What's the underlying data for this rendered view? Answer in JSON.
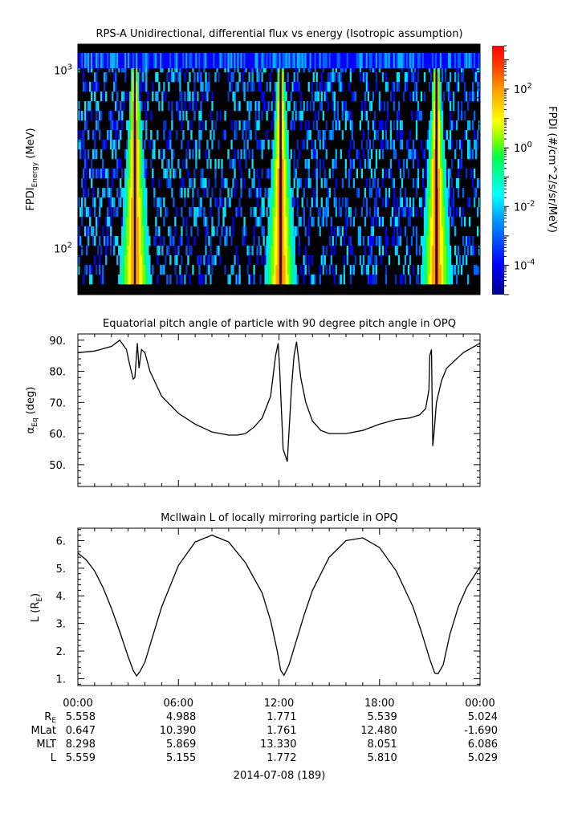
{
  "chart_data": [
    {
      "type": "heatmap",
      "title": "RPS-A Unidirectional, differential flux vs energy (Isotropic assumption)",
      "ylabel": "FPDI",
      "ylabel_sub": "Energy",
      "ylabel_unit": "(MeV)",
      "yscale": "log",
      "ylim": [
        55,
        1400
      ],
      "yticks": [
        {
          "v": 100,
          "base": "10",
          "exp": "2"
        },
        {
          "v": 1000,
          "base": "10",
          "exp": "3"
        }
      ],
      "colorbar": {
        "label": "FPDI (#/cm^2/s/sr/MeV)",
        "scale": "log",
        "range": [
          1e-05,
          3000.0
        ],
        "ticks": [
          {
            "v": 0.0001,
            "base": "10",
            "exp": "-4"
          },
          {
            "v": 0.01,
            "base": "10",
            "exp": "-2"
          },
          {
            "v": 1,
            "base": "10",
            "exp": "0"
          },
          {
            "v": 100,
            "base": "10",
            "exp": "2"
          }
        ]
      },
      "xlim_hours": [
        0,
        24
      ],
      "peak_passes_hours": [
        3.4,
        12.1,
        21.4
      ],
      "colors": [
        "#00008c",
        "#0000ff",
        "#0064ff",
        "#00e6ff",
        "#00ff78",
        "#7aff00",
        "#ffff00",
        "#ffa000",
        "#ff3200",
        "#dc0000"
      ]
    },
    {
      "type": "line",
      "title": "Equatorial pitch angle of particle with 90 degree pitch angle in OPQ",
      "ylabel": "α",
      "ylabel_sub": "Eq",
      "ylabel_unit": "(deg)",
      "ylim": [
        43,
        92
      ],
      "yticks": [
        50,
        60,
        70,
        80,
        90
      ],
      "ytick_labels": [
        "50.",
        "60.",
        "70.",
        "80.",
        "90."
      ],
      "x_hours": [
        0,
        1.0,
        2.0,
        2.5,
        2.9,
        3.1,
        3.3,
        3.4,
        3.55,
        3.65,
        3.8,
        4.0,
        4.3,
        5.0,
        6.0,
        7.0,
        8.0,
        9.0,
        9.5,
        10.0,
        10.5,
        11.0,
        11.5,
        11.8,
        11.95,
        12.05,
        12.25,
        12.5,
        12.75,
        12.9,
        13.05,
        13.3,
        13.6,
        14.0,
        14.5,
        15.0,
        16.0,
        17.0,
        18.0,
        19.0,
        19.8,
        20.4,
        20.75,
        20.95,
        21.0,
        21.1,
        21.18,
        21.25,
        21.4,
        21.7,
        22.0,
        23.0,
        24.0
      ],
      "y": [
        86,
        86.5,
        88,
        90,
        87,
        82,
        77.5,
        78,
        89,
        81,
        87,
        86,
        80,
        72,
        66.5,
        63,
        60.5,
        59.5,
        59.5,
        60,
        62,
        65,
        72,
        85,
        89,
        80,
        55,
        51,
        75,
        85,
        89.5,
        78,
        70,
        64,
        61,
        60,
        60,
        61,
        63,
        64.5,
        65,
        66,
        68,
        74,
        85,
        87,
        56,
        60,
        70,
        77,
        81,
        86,
        89
      ],
      "xlim_hours": [
        0,
        24
      ]
    },
    {
      "type": "line",
      "title": "McIlwain L of locally mirroring particle in OPQ",
      "ylabel": "L (R",
      "ylabel_sub": "E",
      "ylabel_unit": ")",
      "ylim": [
        0.75,
        6.45
      ],
      "yticks": [
        1,
        2,
        3,
        4,
        5,
        6
      ],
      "ytick_labels": [
        "1.",
        "2.",
        "3.",
        "4.",
        "5.",
        "6."
      ],
      "x_hours": [
        0,
        0.5,
        1,
        1.5,
        2,
        2.5,
        3,
        3.3,
        3.5,
        3.7,
        4.0,
        4.5,
        5,
        6,
        7,
        8,
        9,
        10,
        11,
        11.5,
        11.9,
        12.1,
        12.3,
        12.6,
        13,
        13.5,
        14,
        15,
        16,
        17,
        18,
        19,
        20,
        20.5,
        21,
        21.3,
        21.5,
        21.8,
        22.2,
        22.7,
        23.2,
        24
      ],
      "y": [
        5.55,
        5.3,
        4.9,
        4.3,
        3.55,
        2.7,
        1.8,
        1.3,
        1.1,
        1.25,
        1.6,
        2.6,
        3.6,
        5.1,
        5.95,
        6.2,
        5.95,
        5.2,
        4.1,
        3.1,
        2.0,
        1.3,
        1.12,
        1.5,
        2.3,
        3.3,
        4.2,
        5.4,
        6.0,
        6.1,
        5.75,
        4.9,
        3.6,
        2.7,
        1.7,
        1.2,
        1.18,
        1.5,
        2.6,
        3.6,
        4.3,
        5.05
      ],
      "xlim_hours": [
        0,
        24
      ]
    }
  ],
  "x_axis": {
    "tick_labels": [
      "00:00",
      "06:00",
      "12:00",
      "18:00",
      "00:00"
    ],
    "tick_hours": [
      0,
      6,
      12,
      18,
      24
    ]
  },
  "footer": {
    "rows": [
      {
        "label": "R",
        "sub": "E",
        "values": [
          "5.558",
          "4.988",
          "1.771",
          "5.539",
          "5.024"
        ]
      },
      {
        "label": "MLat",
        "sub": "",
        "values": [
          "0.647",
          "10.390",
          "1.761",
          "12.480",
          "-1.690"
        ]
      },
      {
        "label": "MLT",
        "sub": "",
        "values": [
          "8.298",
          "5.869",
          "13.330",
          "8.051",
          "6.086"
        ]
      },
      {
        "label": "L",
        "sub": "",
        "values": [
          "5.559",
          "5.155",
          "1.772",
          "5.810",
          "5.029"
        ]
      }
    ],
    "date": "2014-07-08 (189)"
  }
}
